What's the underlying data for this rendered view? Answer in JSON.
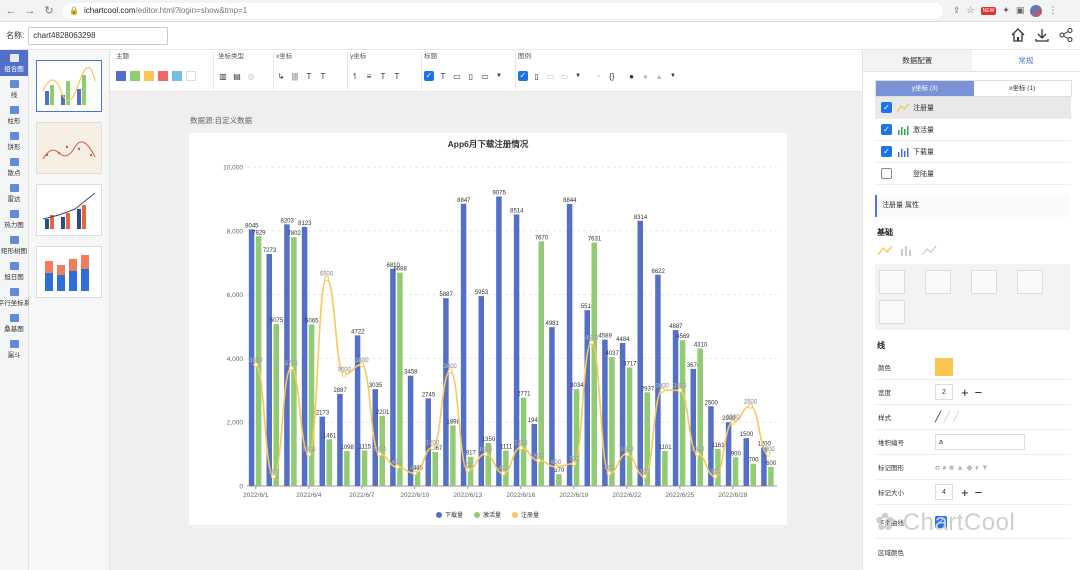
{
  "browser": {
    "url_host": "ichartcool.com",
    "url_rest": "/editor.html?login=show&tmp=1",
    "new_badge": "NEW"
  },
  "topbar": {
    "name_label": "名称:",
    "chart_name": "chart4828063298"
  },
  "leftnav": {
    "items": [
      "组合图",
      "线",
      "柱形",
      "饼形",
      "散点",
      "雷达",
      "热力图",
      "矩形树图",
      "旭日图",
      "平行坐标系",
      "桑基图",
      "漏斗"
    ]
  },
  "toolbar": {
    "groups": [
      "主题",
      "坐标类型",
      "x坐标",
      "y坐标",
      "标题",
      "图例"
    ],
    "theme_colors": [
      "#5470c6",
      "#91cc75",
      "#fac858",
      "#ee6666",
      "#73c0de",
      "#ffffff"
    ]
  },
  "canvas": {
    "source_label": "数据源:自定义数据"
  },
  "chart_data": {
    "type": "bar",
    "title": "App6月下载注册情况",
    "ylim": [
      0,
      10000
    ],
    "yticks": [
      "0",
      "2,000",
      "4,000",
      "6,000",
      "8,000",
      "10,000"
    ],
    "xticks": [
      "2022/6/1",
      "2022/6/4",
      "2022/6/7",
      "2022/6/10",
      "2022/6/13",
      "2022/6/16",
      "2022/6/19",
      "2022/6/22",
      "2022/6/25",
      "2022/6/28"
    ],
    "categories": [
      "2022/6/1",
      "2022/6/2",
      "2022/6/3",
      "2022/6/4",
      "2022/6/5",
      "2022/6/6",
      "2022/6/7",
      "2022/6/8",
      "2022/6/9",
      "2022/6/10",
      "2022/6/11",
      "2022/6/12",
      "2022/6/13",
      "2022/6/14",
      "2022/6/15",
      "2022/6/16",
      "2022/6/17",
      "2022/6/18",
      "2022/6/19",
      "2022/6/20",
      "2022/6/21",
      "2022/6/22",
      "2022/6/23",
      "2022/6/24",
      "2022/6/25",
      "2022/6/26",
      "2022/6/27",
      "2022/6/28",
      "2022/6/29",
      "2022/6/30"
    ],
    "series": [
      {
        "name": "下载量",
        "color": "#5470c6",
        "kind": "bar",
        "values": [
          8045,
          7273,
          8203,
          8123,
          2173,
          2887,
          4722,
          3035,
          6810,
          3458,
          2745,
          5887,
          8847,
          5953,
          9075,
          8514,
          1943,
          4981,
          8844,
          5513,
          4589,
          4484,
          8314,
          6622,
          4887,
          3670,
          2500,
          2000,
          1500,
          1200
        ]
      },
      {
        "name": "激活量",
        "color": "#91cc75",
        "kind": "bar",
        "values": [
          7829,
          5075,
          7802,
          5065,
          1461,
          1098,
          1115,
          2201,
          6688,
          448,
          1067,
          1898,
          917,
          1350,
          1111,
          2771,
          7670,
          370,
          3034,
          7631,
          4037,
          3717,
          2937,
          1101,
          4569,
          4310,
          1161,
          900,
          700,
          600
        ]
      },
      {
        "name": "注册量",
        "color": "#fac858",
        "kind": "line",
        "values": [
          3800,
          298,
          3700,
          1000,
          6500,
          3500,
          3800,
          1000,
          600,
          400,
          1200,
          3600,
          500,
          1000,
          400,
          1200,
          800,
          600,
          700,
          4500,
          400,
          1000,
          300,
          3000,
          3000,
          1000,
          300,
          2000,
          2500,
          1000
        ]
      }
    ],
    "legend_position": "bottom-center",
    "grid": "horizontal-dashed"
  },
  "rightpanel": {
    "tabs": [
      "数据配置",
      "常规"
    ],
    "axis_tabs": [
      "y坐标 (3)",
      "x坐标 (1)"
    ],
    "series_rows": [
      {
        "label": "注册量",
        "checked": true
      },
      {
        "label": "激活量",
        "checked": true
      },
      {
        "label": "下载量",
        "checked": true
      },
      {
        "label": "登陆量",
        "checked": false
      }
    ],
    "prop_title": "注册量 属性",
    "section_basic": "基础",
    "section_line": "线",
    "props": {
      "color_label": "颜色",
      "color_value": "#f9c54e",
      "width_label": "宽度",
      "width_value": "2",
      "style_label": "样式",
      "marker_index_label": "堆积编号",
      "marker_index_value": "a",
      "marker_shape_label": "标记图形",
      "marker_size_label": "标记大小",
      "marker_size_value": "4",
      "smooth_label": "平滑曲线",
      "area_color_label": "区域颜色"
    }
  },
  "watermark": "ChartCool"
}
